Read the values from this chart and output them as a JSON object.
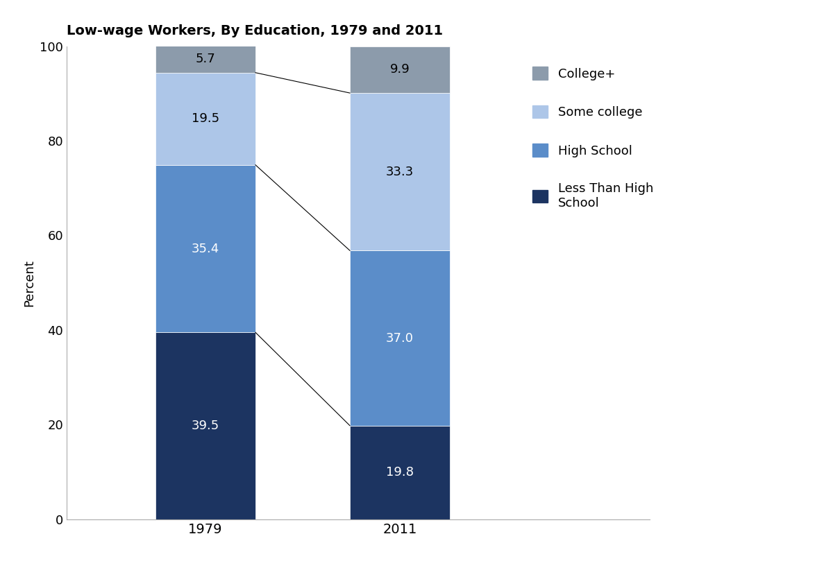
{
  "title": "Low-wage Workers, By Education, 1979 and 2011",
  "years": [
    "1979",
    "2011"
  ],
  "categories": [
    "Less Than High School",
    "High School",
    "Some college",
    "College+"
  ],
  "values": {
    "1979": [
      39.5,
      35.4,
      19.5,
      5.7
    ],
    "2011": [
      19.8,
      37.0,
      33.3,
      9.9
    ]
  },
  "colors": [
    "#1c3461",
    "#5b8dc9",
    "#adc6e8",
    "#8c9bab"
  ],
  "ylabel": "Percent",
  "ylim": [
    0,
    100
  ],
  "yticks": [
    0,
    20,
    40,
    60,
    80,
    100
  ],
  "legend_labels": [
    "College+",
    "Some college",
    "High School",
    "Less Than High\nSchool"
  ],
  "label_colors": {
    "Less Than High School": "white",
    "High School": "white",
    "Some college": "black",
    "College+": "black"
  },
  "bar_width": 0.18,
  "bar_positions": [
    0.25,
    0.6
  ],
  "xlim": [
    0.0,
    1.05
  ],
  "label_fontsize": 13,
  "tick_fontsize": 13,
  "ylabel_fontsize": 13,
  "title_fontsize": 14
}
